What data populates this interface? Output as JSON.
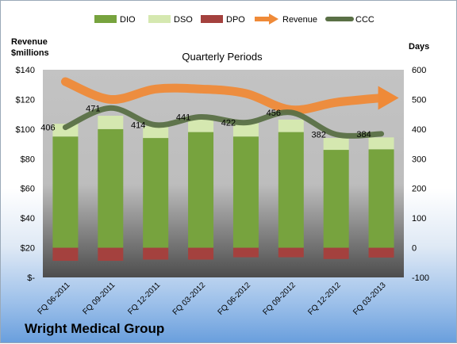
{
  "chart_data": {
    "type": "bar",
    "title": "Quarterly Periods",
    "categories": [
      "FQ 06-2011",
      "FQ 09-2011",
      "FQ 12-2011",
      "FQ 03-2012",
      "FQ 06-2012",
      "FQ 09-2012",
      "FQ 12-2012",
      "FQ 03-2013"
    ],
    "left_axis": {
      "label_line1": "Revenue",
      "label_line2": "$millions",
      "ylim": [
        0,
        140
      ],
      "ticks": [
        0,
        20,
        40,
        60,
        80,
        100,
        120,
        140
      ],
      "tick_labels": [
        "$-",
        "$20",
        "$40",
        "$60",
        "$80",
        "$100",
        "$120",
        "$140"
      ]
    },
    "right_axis": {
      "label": "Days",
      "ylim": [
        -100,
        600
      ],
      "ticks": [
        -100,
        0,
        100,
        200,
        300,
        400,
        500,
        600
      ],
      "tick_labels": [
        "-100",
        "0",
        "100",
        "200",
        "300",
        "400",
        "500",
        "600"
      ]
    },
    "series": [
      {
        "name": "DIO",
        "type": "stacked-bar",
        "axis": "right",
        "color": "#77a33e",
        "values": [
          375,
          400,
          370,
          390,
          375,
          390,
          330,
          332
        ]
      },
      {
        "name": "DSO",
        "type": "stacked-bar",
        "axis": "right",
        "color": "#d5e8b0",
        "values": [
          43,
          45,
          40,
          45,
          45,
          42,
          40,
          40
        ]
      },
      {
        "name": "DPO",
        "type": "negative-bar",
        "axis": "right",
        "color": "#a4413e",
        "values": [
          -44,
          -44,
          -40,
          -40,
          -32,
          -32,
          -38,
          -33
        ]
      },
      {
        "name": "Revenue",
        "type": "arrow-line",
        "axis": "left",
        "color": "#ef8a38",
        "values": [
          132,
          120,
          127,
          127,
          124,
          113,
          118,
          121
        ]
      },
      {
        "name": "CCC",
        "type": "line",
        "axis": "right",
        "color": "#5a7046",
        "values": [
          406,
          471,
          414,
          441,
          422,
          456,
          382,
          384
        ],
        "labels": [
          "406",
          "471",
          "414",
          "441",
          "422",
          "456",
          "382",
          "384"
        ]
      }
    ],
    "legend_position": "top",
    "grid": false
  },
  "company": "Wright Medical Group"
}
